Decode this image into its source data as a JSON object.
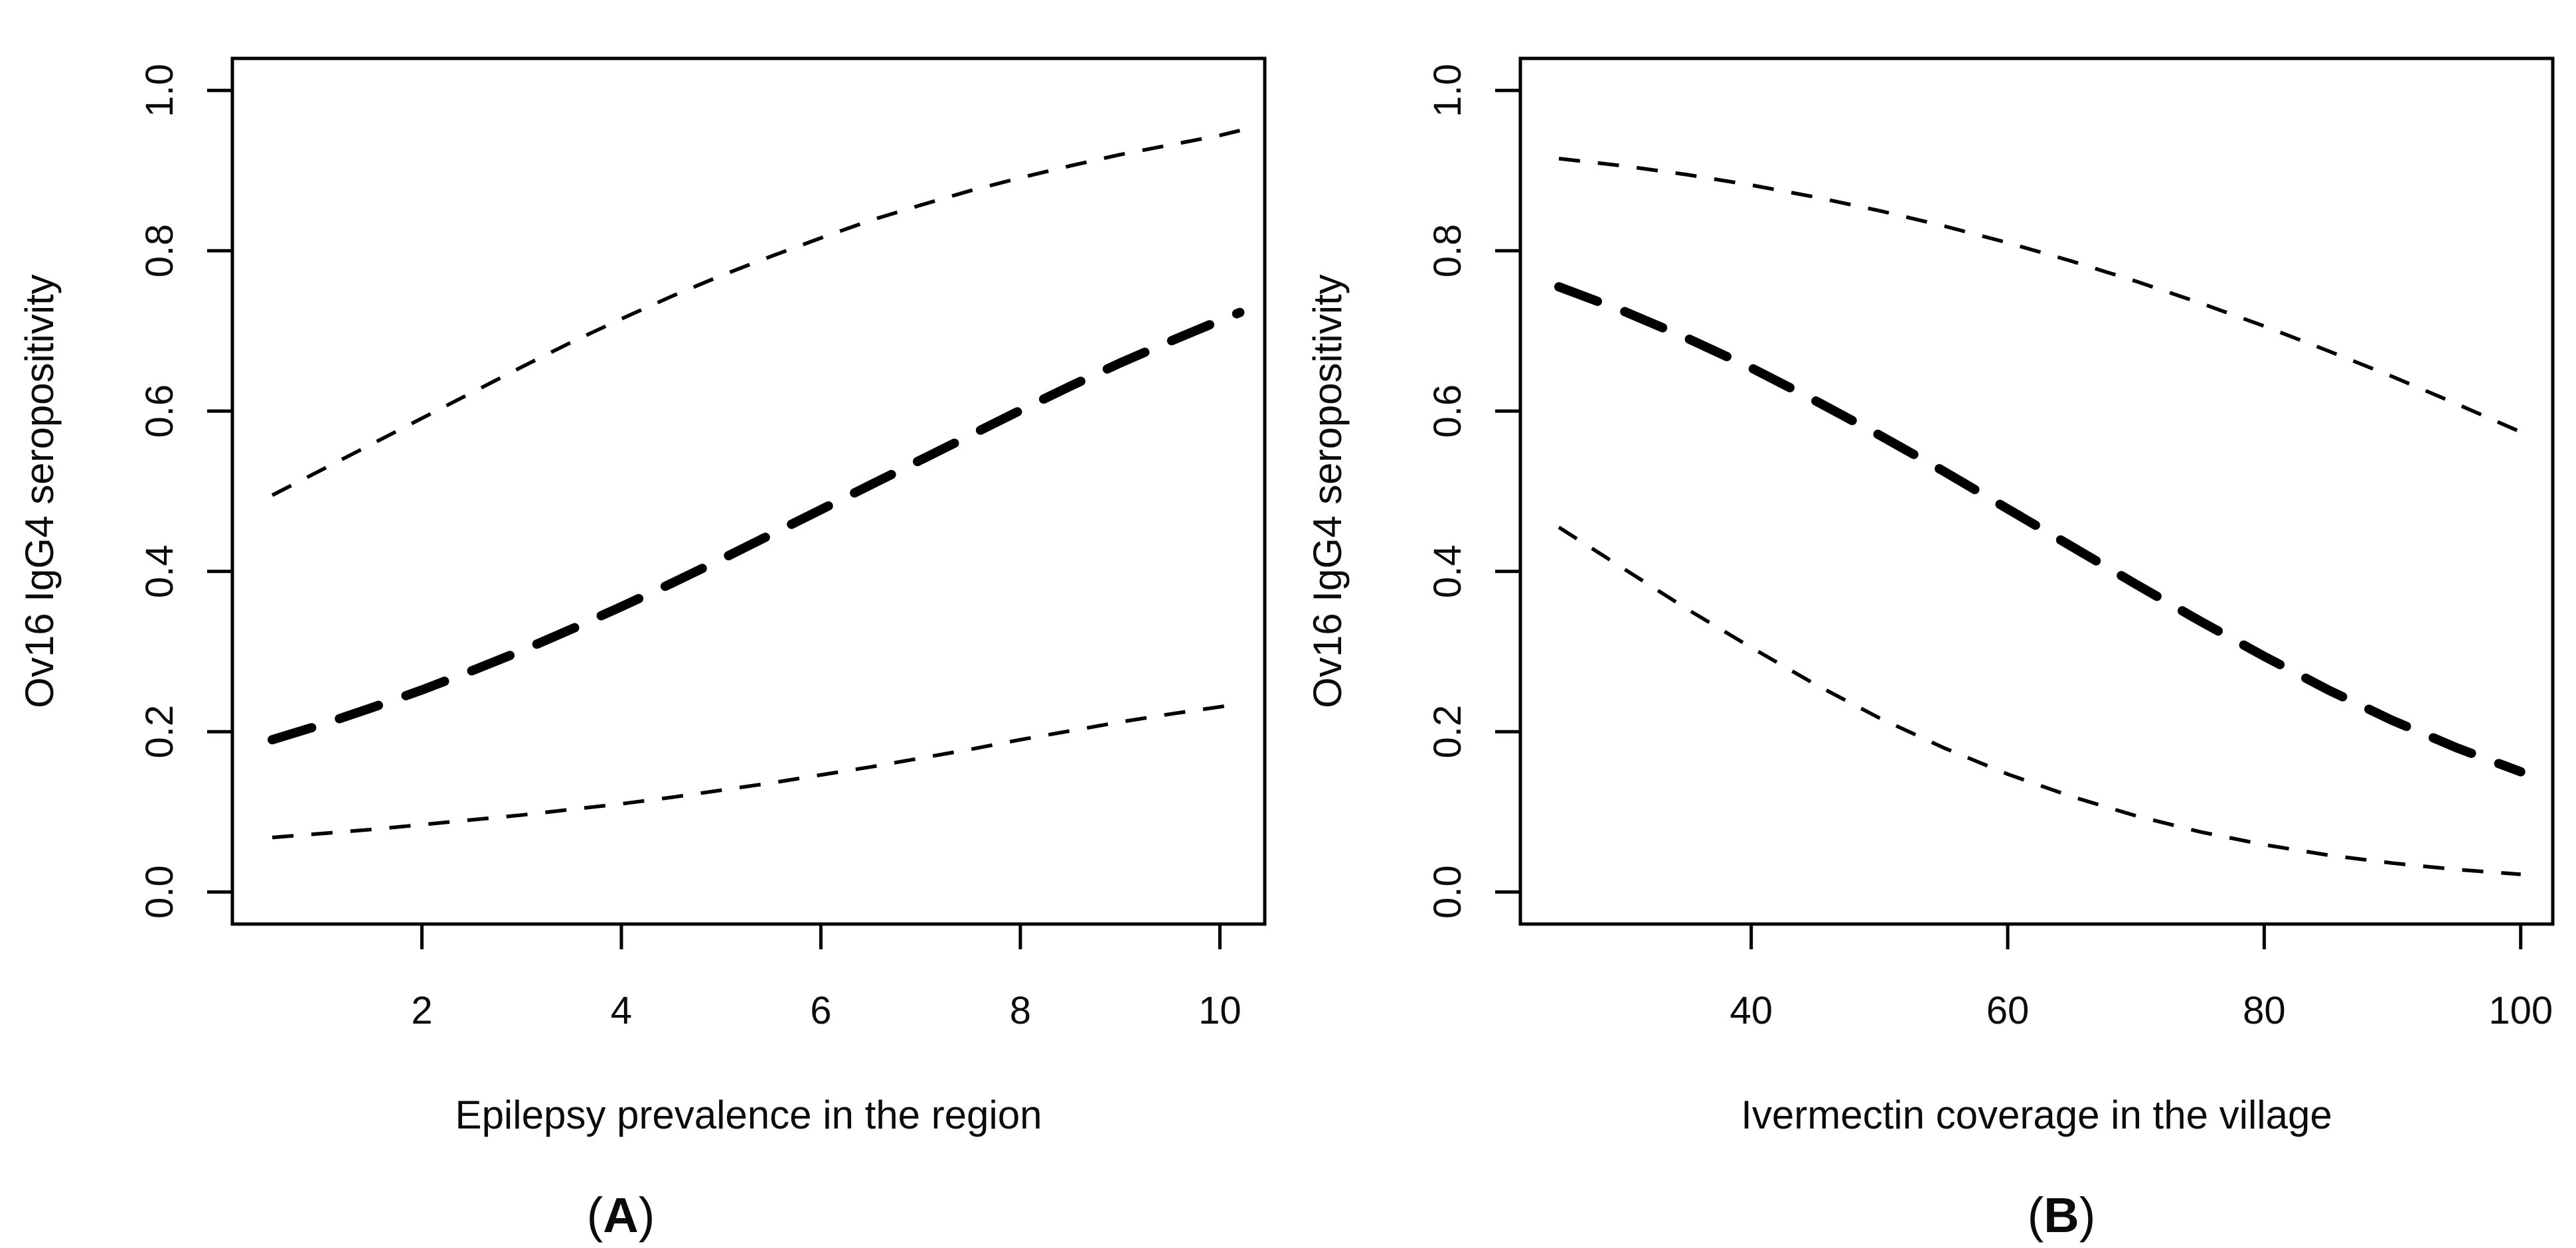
{
  "figure": {
    "background": "#ffffff",
    "line_color": "#000000",
    "text_color": "#0b0b0b"
  },
  "chart_data": [
    {
      "type": "line",
      "panel_label": "A",
      "caption": {
        "open": "(",
        "letter": "A",
        "close": ")"
      },
      "title": "",
      "xlabel": "Epilepsy prevalence in the region",
      "ylabel": "Ov16 IgG4 seropositivity",
      "xlim": [
        0.1,
        10.45
      ],
      "ylim": [
        -0.04,
        1.04
      ],
      "x_ticks": [
        2,
        4,
        6,
        8,
        10
      ],
      "x_tick_labels": [
        "2",
        "4",
        "6",
        "8",
        "10"
      ],
      "y_ticks": [
        0,
        0.2,
        0.4,
        0.6,
        0.8,
        1
      ],
      "y_tick_labels": [
        "0.0",
        "0.2",
        "0.4",
        "0.6",
        "0.8",
        "1.0"
      ],
      "grid": false,
      "legend": "none",
      "x": [
        0.5,
        1,
        1.5,
        2,
        2.5,
        3,
        3.5,
        4,
        4.5,
        5,
        5.5,
        6,
        6.5,
        7,
        7.5,
        8,
        8.5,
        9,
        9.5,
        10,
        10.2
      ],
      "series": [
        {
          "name": "predicted-seropositivity",
          "style": "bold-dashed",
          "values": [
            0.19,
            0.209,
            0.23,
            0.252,
            0.276,
            0.301,
            0.328,
            0.356,
            0.385,
            0.415,
            0.446,
            0.477,
            0.508,
            0.539,
            0.57,
            0.601,
            0.631,
            0.66,
            0.687,
            0.713,
            0.723
          ]
        },
        {
          "name": "upper-confidence-band",
          "style": "thin-dashed",
          "values": [
            0.495,
            0.527,
            0.559,
            0.591,
            0.623,
            0.655,
            0.686,
            0.715,
            0.743,
            0.769,
            0.793,
            0.816,
            0.838,
            0.857,
            0.875,
            0.891,
            0.906,
            0.92,
            0.932,
            0.944,
            0.95
          ]
        },
        {
          "name": "lower-confidence-band",
          "style": "thin-dashed",
          "values": [
            0.068,
            0.073,
            0.078,
            0.084,
            0.09,
            0.096,
            0.103,
            0.11,
            0.118,
            0.127,
            0.136,
            0.146,
            0.156,
            0.167,
            0.178,
            0.19,
            0.201,
            0.212,
            0.222,
            0.231,
            0.235
          ]
        }
      ]
    },
    {
      "type": "line",
      "panel_label": "B",
      "caption": {
        "open": "(",
        "letter": "B",
        "close": ")"
      },
      "title": "",
      "xlabel": "Ivermectin coverage in the village",
      "ylabel": "Ov16 IgG4 seropositivity",
      "xlim": [
        22,
        102.5
      ],
      "ylim": [
        -0.04,
        1.04
      ],
      "x_ticks": [
        40,
        60,
        80,
        100
      ],
      "x_tick_labels": [
        "40",
        "60",
        "80",
        "100"
      ],
      "y_ticks": [
        0,
        0.2,
        0.4,
        0.6,
        0.8,
        1
      ],
      "y_tick_labels": [
        "0.0",
        "0.2",
        "0.4",
        "0.6",
        "0.8",
        "1.0"
      ],
      "grid": false,
      "legend": "none",
      "x": [
        25,
        30,
        35,
        40,
        45,
        50,
        55,
        60,
        65,
        70,
        75,
        80,
        85,
        90,
        95,
        100
      ],
      "series": [
        {
          "name": "predicted-seropositivity",
          "style": "bold-dashed",
          "values": [
            0.755,
            0.725,
            0.691,
            0.654,
            0.613,
            0.57,
            0.525,
            0.478,
            0.431,
            0.384,
            0.338,
            0.294,
            0.252,
            0.214,
            0.18,
            0.15
          ]
        },
        {
          "name": "upper-confidence-band",
          "style": "thin-dashed",
          "values": [
            0.915,
            0.906,
            0.895,
            0.882,
            0.867,
            0.85,
            0.831,
            0.81,
            0.787,
            0.762,
            0.735,
            0.706,
            0.675,
            0.643,
            0.609,
            0.574
          ]
        },
        {
          "name": "lower-confidence-band",
          "style": "thin-dashed",
          "values": [
            0.455,
            0.404,
            0.353,
            0.305,
            0.259,
            0.217,
            0.18,
            0.147,
            0.119,
            0.095,
            0.075,
            0.059,
            0.046,
            0.036,
            0.028,
            0.022
          ]
        }
      ]
    }
  ]
}
